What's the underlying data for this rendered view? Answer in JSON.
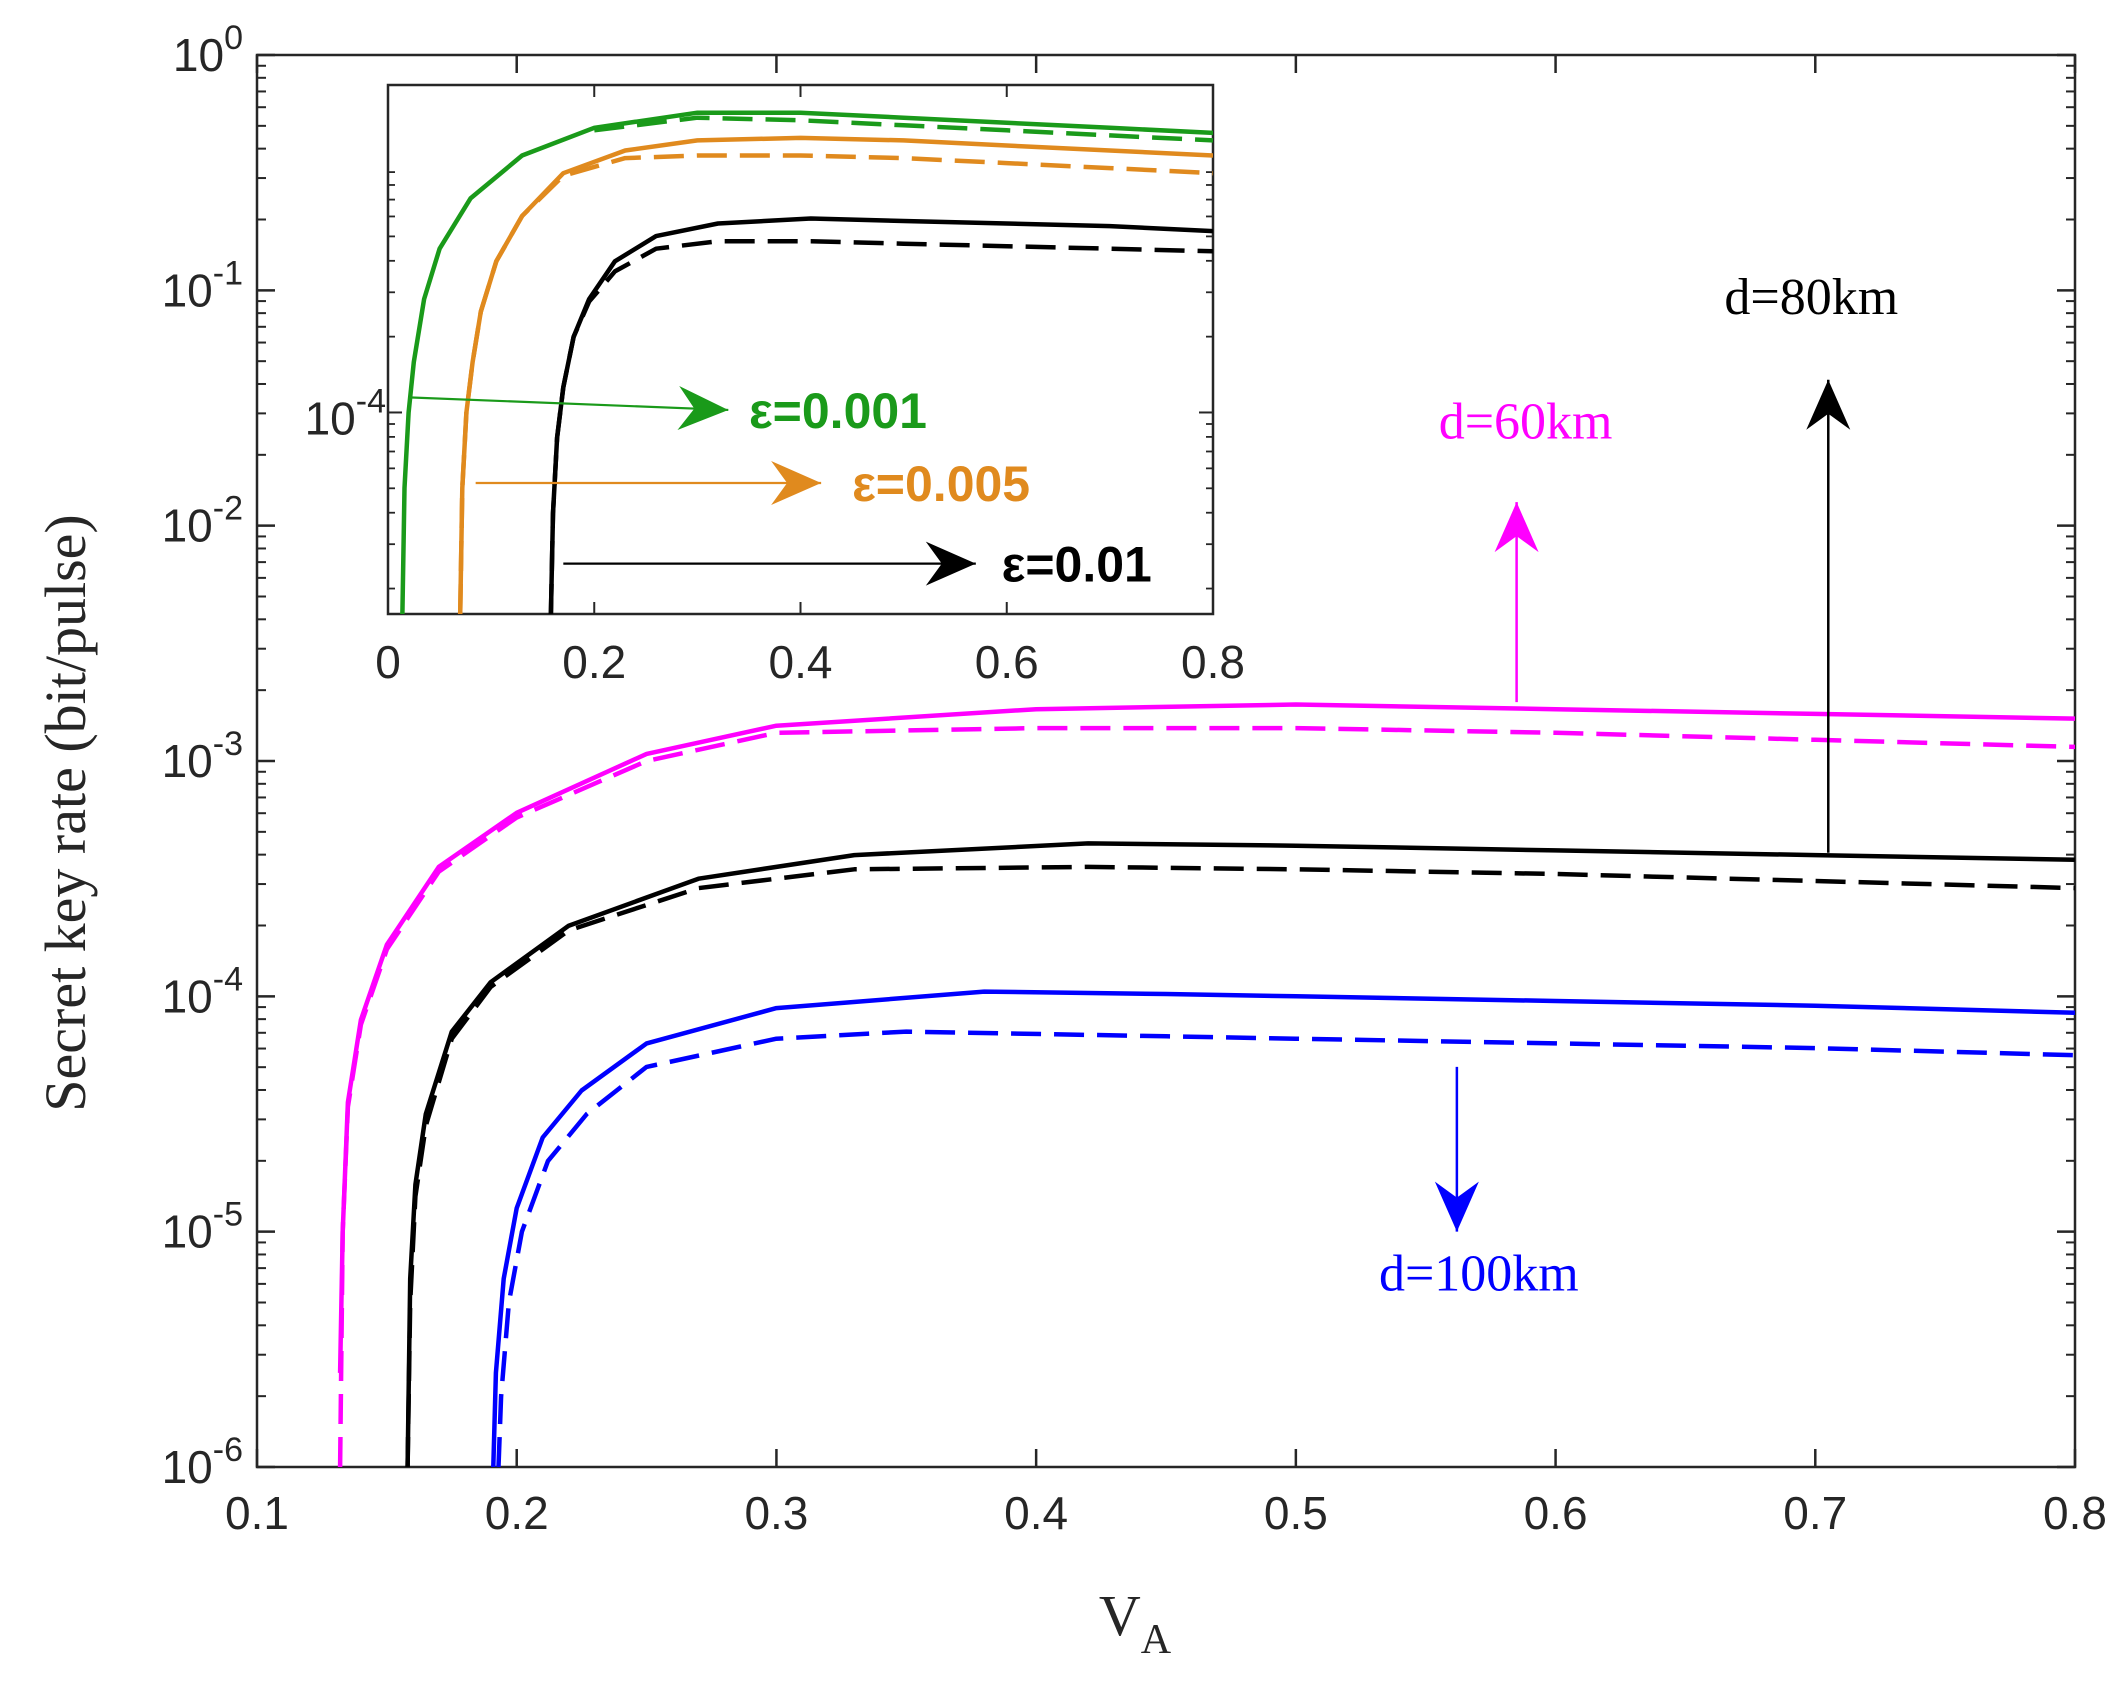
{
  "chart_data": {
    "type": "line",
    "title": "",
    "xlabel": "V",
    "xlabel_sub": "A",
    "ylabel": "Secret key rate (bit/pulse)",
    "yscale": "log",
    "xlim": [
      0.1,
      0.8
    ],
    "ylim_exp": [
      -6,
      0
    ],
    "xticks": [
      "0.1",
      "0.2",
      "0.3",
      "0.4",
      "0.5",
      "0.6",
      "0.7",
      "0.8"
    ],
    "yticks": [
      {
        "base": "10",
        "exp": "0"
      },
      {
        "base": "10",
        "exp": "-1"
      },
      {
        "base": "10",
        "exp": "-2"
      },
      {
        "base": "10",
        "exp": "-3"
      },
      {
        "base": "10",
        "exp": "-4"
      },
      {
        "base": "10",
        "exp": "-5"
      },
      {
        "base": "10",
        "exp": "-6"
      }
    ],
    "colors": {
      "magenta": "#ff00ff",
      "black": "#000000",
      "blue": "#0000ff",
      "green": "#1a9a1a",
      "orange": "#e08a1e",
      "axis": "#262626"
    },
    "series": [
      {
        "name": "d=60km solid",
        "color": "magenta",
        "dash": false,
        "x": [
          0.132,
          0.133,
          0.135,
          0.14,
          0.15,
          0.17,
          0.2,
          0.25,
          0.3,
          0.4,
          0.5,
          0.6,
          0.7,
          0.8
        ],
        "y_exp": [
          -5.6,
          -5.0,
          -4.45,
          -4.1,
          -3.78,
          -3.45,
          -3.22,
          -2.97,
          -2.85,
          -2.78,
          -2.76,
          -2.78,
          -2.8,
          -2.82
        ]
      },
      {
        "name": "d=60km dashed",
        "color": "magenta",
        "dash": true,
        "x": [
          0.132,
          0.133,
          0.135,
          0.14,
          0.15,
          0.17,
          0.2,
          0.25,
          0.3,
          0.4,
          0.5,
          0.6,
          0.7,
          0.8
        ],
        "y_exp": [
          -6,
          -5.0,
          -4.47,
          -4.12,
          -3.8,
          -3.47,
          -3.24,
          -3.0,
          -2.88,
          -2.86,
          -2.86,
          -2.88,
          -2.91,
          -2.94
        ]
      },
      {
        "name": "d=80km solid",
        "color": "black",
        "dash": false,
        "x": [
          0.158,
          0.159,
          0.161,
          0.165,
          0.175,
          0.19,
          0.22,
          0.27,
          0.33,
          0.42,
          0.5,
          0.6,
          0.7,
          0.8
        ],
        "y_exp": [
          -6,
          -5.2,
          -4.8,
          -4.5,
          -4.15,
          -3.94,
          -3.7,
          -3.5,
          -3.4,
          -3.35,
          -3.36,
          -3.38,
          -3.4,
          -3.42
        ]
      },
      {
        "name": "d=80km dashed",
        "color": "black",
        "dash": true,
        "x": [
          0.158,
          0.159,
          0.161,
          0.165,
          0.175,
          0.19,
          0.22,
          0.27,
          0.33,
          0.42,
          0.5,
          0.6,
          0.7,
          0.8
        ],
        "y_exp": [
          -6,
          -5.3,
          -4.85,
          -4.55,
          -4.18,
          -3.96,
          -3.72,
          -3.54,
          -3.46,
          -3.45,
          -3.46,
          -3.48,
          -3.51,
          -3.54
        ]
      },
      {
        "name": "d=100km solid",
        "color": "blue",
        "dash": false,
        "x": [
          0.191,
          0.192,
          0.195,
          0.2,
          0.21,
          0.225,
          0.25,
          0.3,
          0.38,
          0.45,
          0.5,
          0.6,
          0.7,
          0.8
        ],
        "y_exp": [
          -6,
          -5.6,
          -5.2,
          -4.9,
          -4.6,
          -4.4,
          -4.2,
          -4.05,
          -3.98,
          -3.99,
          -4.0,
          -4.02,
          -4.04,
          -4.07
        ]
      },
      {
        "name": "d=100km dashed",
        "color": "blue",
        "dash": true,
        "x": [
          0.193,
          0.194,
          0.197,
          0.202,
          0.212,
          0.227,
          0.25,
          0.3,
          0.35,
          0.45,
          0.5,
          0.6,
          0.7,
          0.8
        ],
        "y_exp": [
          -6,
          -5.7,
          -5.3,
          -5.0,
          -4.7,
          -4.5,
          -4.3,
          -4.18,
          -4.15,
          -4.17,
          -4.18,
          -4.2,
          -4.22,
          -4.25
        ]
      }
    ],
    "annotations": {
      "d60": {
        "text": "d=60km",
        "color": "magenta",
        "anchor_x": 0.585,
        "anchor_y_exp": -2.75,
        "tip_y_exp": -1.9,
        "text_x": 0.555,
        "text_y_exp": -1.63
      },
      "d80": {
        "text": "d=80km",
        "color": "black",
        "anchor_x": 0.705,
        "anchor_y_exp": -3.39,
        "tip_y_exp": -1.38,
        "text_x": 0.665,
        "text_y_exp": -1.1
      },
      "d100": {
        "text": "d=100km",
        "color": "blue",
        "anchor_x": 0.562,
        "anchor_y_exp": -4.3,
        "tip_y_exp": -5.0,
        "text_x": 0.532,
        "text_y_exp": -5.25
      }
    },
    "inset": {
      "xlim": [
        0,
        0.8
      ],
      "ylim_exp": [
        -4.8,
        -2.7
      ],
      "xticks": [
        "0",
        "0.2",
        "0.4",
        "0.6",
        "0.8"
      ],
      "ytick": {
        "base": "10",
        "exp": "-4",
        "value_exp": -4
      },
      "series": [
        {
          "name": "ε=0.001 solid",
          "color": "green",
          "dash": false,
          "x": [
            0.014,
            0.016,
            0.02,
            0.025,
            0.035,
            0.05,
            0.08,
            0.13,
            0.2,
            0.3,
            0.4,
            0.5,
            0.6,
            0.7,
            0.8
          ],
          "y_exp": [
            -4.8,
            -4.3,
            -4.0,
            -3.8,
            -3.55,
            -3.35,
            -3.15,
            -2.98,
            -2.87,
            -2.81,
            -2.81,
            -2.83,
            -2.85,
            -2.87,
            -2.89
          ]
        },
        {
          "name": "ε=0.001 dashed",
          "color": "green",
          "dash": true,
          "x": [
            0.2,
            0.3,
            0.4,
            0.5,
            0.6,
            0.7,
            0.8
          ],
          "y_exp": [
            -2.88,
            -2.83,
            -2.84,
            -2.86,
            -2.88,
            -2.9,
            -2.92
          ]
        },
        {
          "name": "ε=0.005 solid",
          "color": "orange",
          "dash": false,
          "x": [
            0.07,
            0.072,
            0.076,
            0.082,
            0.09,
            0.105,
            0.13,
            0.17,
            0.23,
            0.3,
            0.4,
            0.5,
            0.6,
            0.7,
            0.8
          ],
          "y_exp": [
            -4.8,
            -4.3,
            -4.0,
            -3.8,
            -3.6,
            -3.4,
            -3.22,
            -3.05,
            -2.96,
            -2.92,
            -2.91,
            -2.92,
            -2.94,
            -2.96,
            -2.98
          ]
        },
        {
          "name": "ε=0.005 dashed",
          "color": "orange",
          "dash": true,
          "x": [
            0.07,
            0.072,
            0.076,
            0.082,
            0.09,
            0.105,
            0.13,
            0.17,
            0.23,
            0.3,
            0.4,
            0.5,
            0.6,
            0.7,
            0.8
          ],
          "y_exp": [
            -4.8,
            -4.3,
            -4.0,
            -3.8,
            -3.6,
            -3.4,
            -3.22,
            -3.06,
            -2.99,
            -2.98,
            -2.98,
            -2.99,
            -3.01,
            -3.03,
            -3.05
          ]
        },
        {
          "name": "ε=0.01 solid",
          "color": "black",
          "dash": false,
          "x": [
            0.158,
            0.16,
            0.164,
            0.17,
            0.18,
            0.195,
            0.22,
            0.26,
            0.32,
            0.41,
            0.5,
            0.6,
            0.7,
            0.8
          ],
          "y_exp": [
            -4.8,
            -4.4,
            -4.1,
            -3.9,
            -3.7,
            -3.55,
            -3.4,
            -3.3,
            -3.25,
            -3.23,
            -3.24,
            -3.25,
            -3.26,
            -3.28
          ]
        },
        {
          "name": "ε=0.01 dashed",
          "color": "black",
          "dash": true,
          "x": [
            0.158,
            0.16,
            0.164,
            0.17,
            0.18,
            0.195,
            0.22,
            0.26,
            0.32,
            0.41,
            0.5,
            0.6,
            0.7,
            0.8
          ],
          "y_exp": [
            -4.8,
            -4.4,
            -4.1,
            -3.9,
            -3.7,
            -3.56,
            -3.44,
            -3.35,
            -3.32,
            -3.32,
            -3.33,
            -3.34,
            -3.35,
            -3.36
          ]
        }
      ],
      "arrows": [
        {
          "text": "ε=0.001",
          "color": "green",
          "from_x": 0.02,
          "from_y_exp": -3.94,
          "to_x": 0.33,
          "to_y_exp": -3.99,
          "text_x": 0.35,
          "text_y_exp": -3.99
        },
        {
          "text": "ε=0.005",
          "color": "orange",
          "from_x": 0.085,
          "from_y_exp": -4.28,
          "to_x": 0.42,
          "to_y_exp": -4.28,
          "text_x": 0.45,
          "text_y_exp": -4.28
        },
        {
          "text": "ε=0.01",
          "color": "black",
          "from_x": 0.17,
          "from_y_exp": -4.6,
          "to_x": 0.57,
          "to_y_exp": -4.6,
          "text_x": 0.595,
          "text_y_exp": -4.6
        }
      ]
    }
  }
}
